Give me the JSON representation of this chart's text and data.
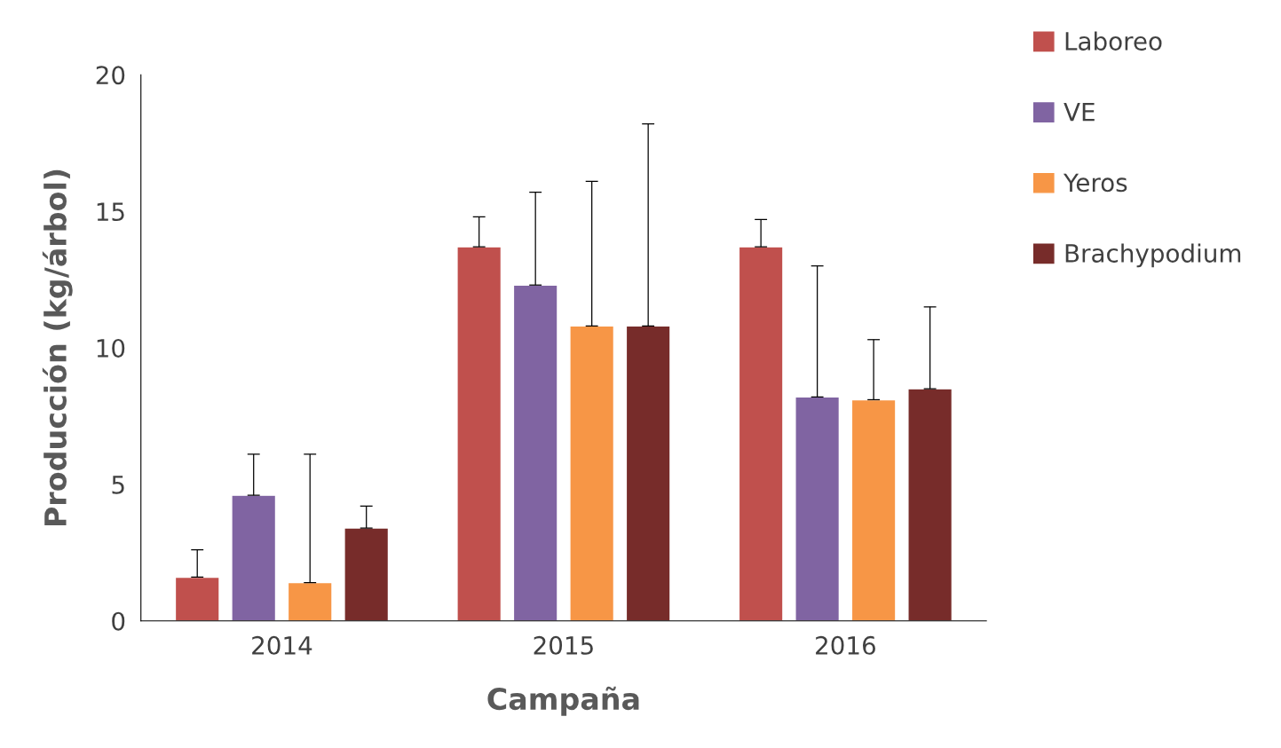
{
  "chart_data": {
    "type": "bar",
    "xlabel": "Campaña",
    "ylabel": "Producción (kg/árbol)",
    "categories": [
      "2014",
      "2015",
      "2016"
    ],
    "series": [
      {
        "name": "Laboreo",
        "color": "#c0504d",
        "values": [
          1.6,
          13.7,
          13.7
        ],
        "errors": [
          [
            1.6,
            2.6
          ],
          [
            13.7,
            14.8
          ],
          [
            13.7,
            14.7
          ]
        ]
      },
      {
        "name": "VE",
        "color": "#8064a2",
        "values": [
          4.6,
          12.3,
          8.2
        ],
        "errors": [
          [
            4.6,
            6.1
          ],
          [
            12.3,
            15.7
          ],
          [
            8.2,
            13.0
          ]
        ]
      },
      {
        "name": "Yeros",
        "color": "#f79646",
        "values": [
          1.4,
          10.8,
          8.1
        ],
        "errors": [
          [
            1.4,
            6.1
          ],
          [
            10.8,
            16.1
          ],
          [
            8.1,
            10.3
          ]
        ]
      },
      {
        "name": "Brachypodium",
        "color": "#772c2a",
        "values": [
          3.4,
          10.8,
          8.5
        ],
        "errors": [
          [
            3.4,
            4.2
          ],
          [
            10.8,
            18.2
          ],
          [
            8.5,
            11.5
          ]
        ]
      }
    ],
    "ylim": [
      0,
      20
    ],
    "yticks": [
      0,
      5,
      10,
      15,
      20
    ],
    "grid": false,
    "legend": "top right"
  }
}
